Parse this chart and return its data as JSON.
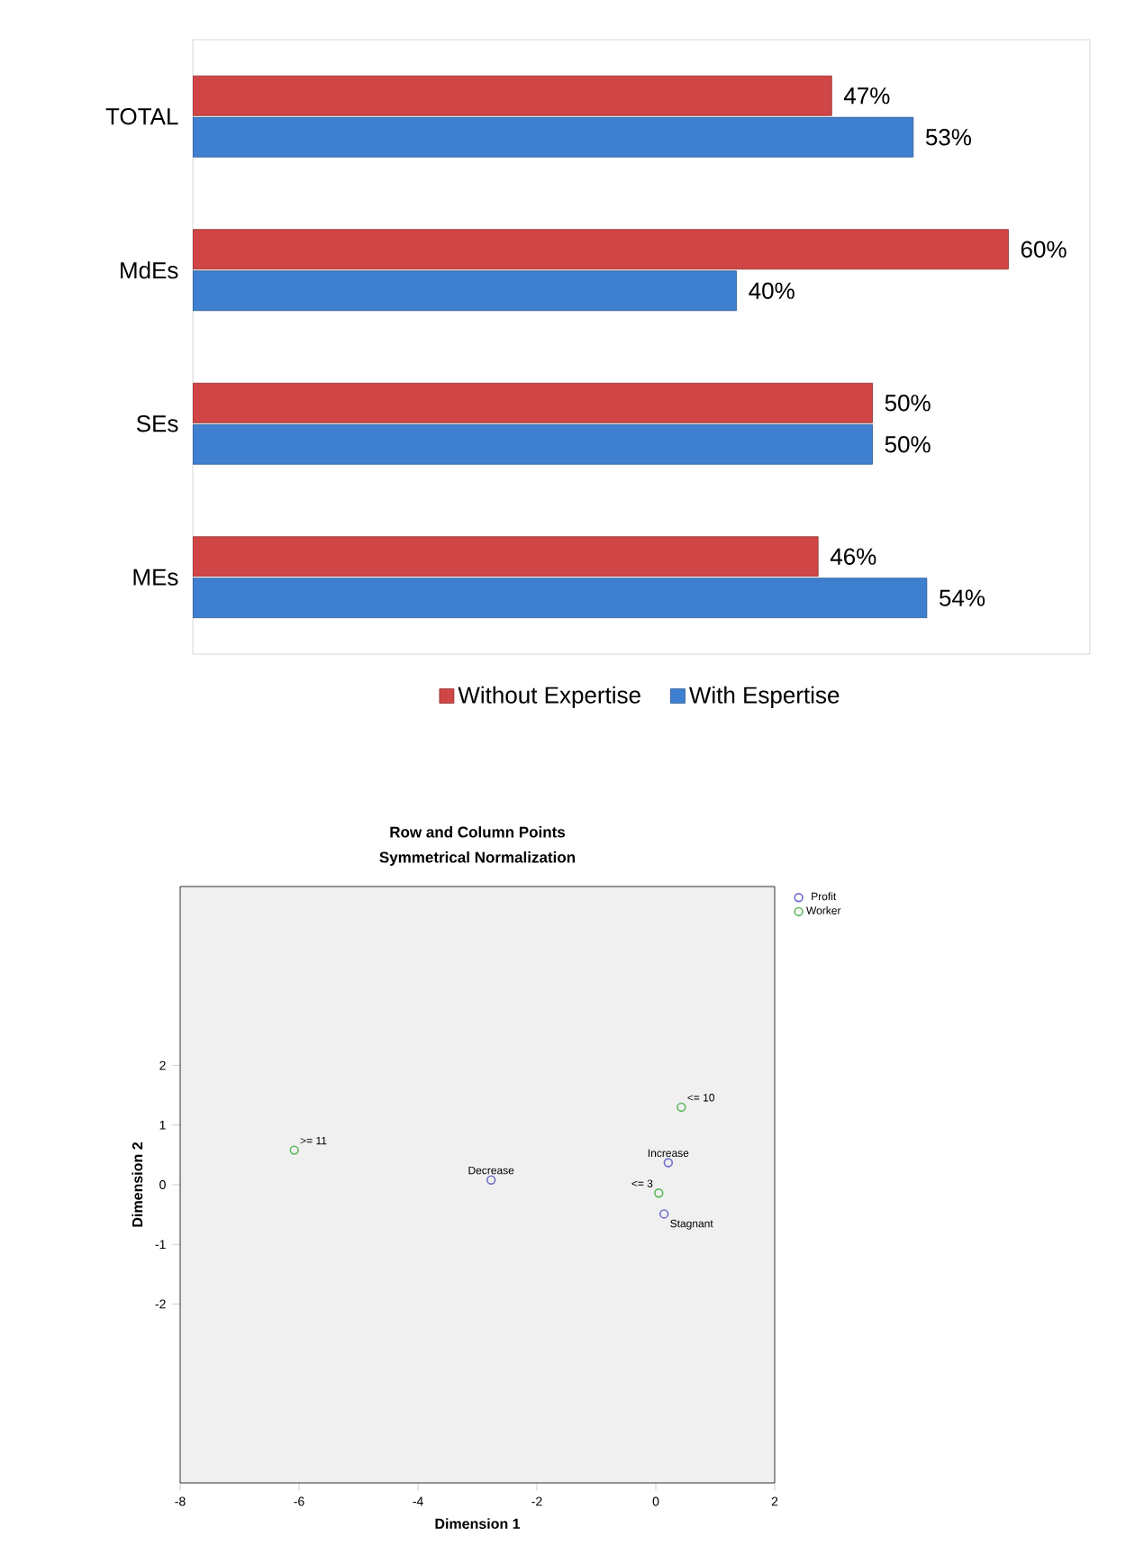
{
  "chart_data": [
    {
      "type": "bar",
      "orientation": "horizontal",
      "categories": [
        "TOTAL",
        "MdEs",
        "SEs",
        "MEs"
      ],
      "series": [
        {
          "name": "Without Expertise",
          "color": "#d04545",
          "values": [
            47,
            60,
            50,
            46
          ],
          "value_labels": [
            "47%",
            "60%",
            "50%",
            "46%"
          ]
        },
        {
          "name": "With Espertise",
          "color": "#3f7fd0",
          "values": [
            53,
            40,
            50,
            54
          ],
          "value_labels": [
            "53%",
            "40%",
            "50%",
            "54%"
          ]
        }
      ],
      "legend": "bottom"
    },
    {
      "type": "scatter",
      "title": "Row and Column Points",
      "subtitle": "Symmetrical Normalization",
      "xlabel": "Dimension 1",
      "ylabel": "Dimension 2",
      "xlim": [
        -8,
        2
      ],
      "ylim": [
        -5,
        5
      ],
      "xticks": [
        -8,
        -6,
        -4,
        -2,
        0,
        2
      ],
      "yticks": [
        -2,
        -1,
        0,
        1,
        2
      ],
      "series": [
        {
          "name": "Profit",
          "color": "#6f6fc8",
          "x": [
            -2.77,
            0.21,
            0.14
          ],
          "values": [
            0.08,
            0.37,
            -0.49
          ]
        },
        {
          "name": "Worker",
          "color": "#5cb85c",
          "x": [
            -6.08,
            0.43,
            0.05
          ],
          "values": [
            0.58,
            1.3,
            -0.14
          ]
        }
      ],
      "marker": "circle",
      "legend": "top right",
      "annotations": [
        {
          "text": "Decrease",
          "x": -2.77,
          "y": 0.08
        },
        {
          "text": "Increase",
          "x": 0.21,
          "y": 0.37
        },
        {
          "text": "Stagnant",
          "x": 0.14,
          "y": -0.49
        },
        {
          "text": ">= 11",
          "x": -6.08,
          "y": 0.58
        },
        {
          "text": "<= 10",
          "x": 0.43,
          "y": 1.3
        },
        {
          "text": "<= 3",
          "x": 0.05,
          "y": -0.14
        }
      ]
    }
  ]
}
